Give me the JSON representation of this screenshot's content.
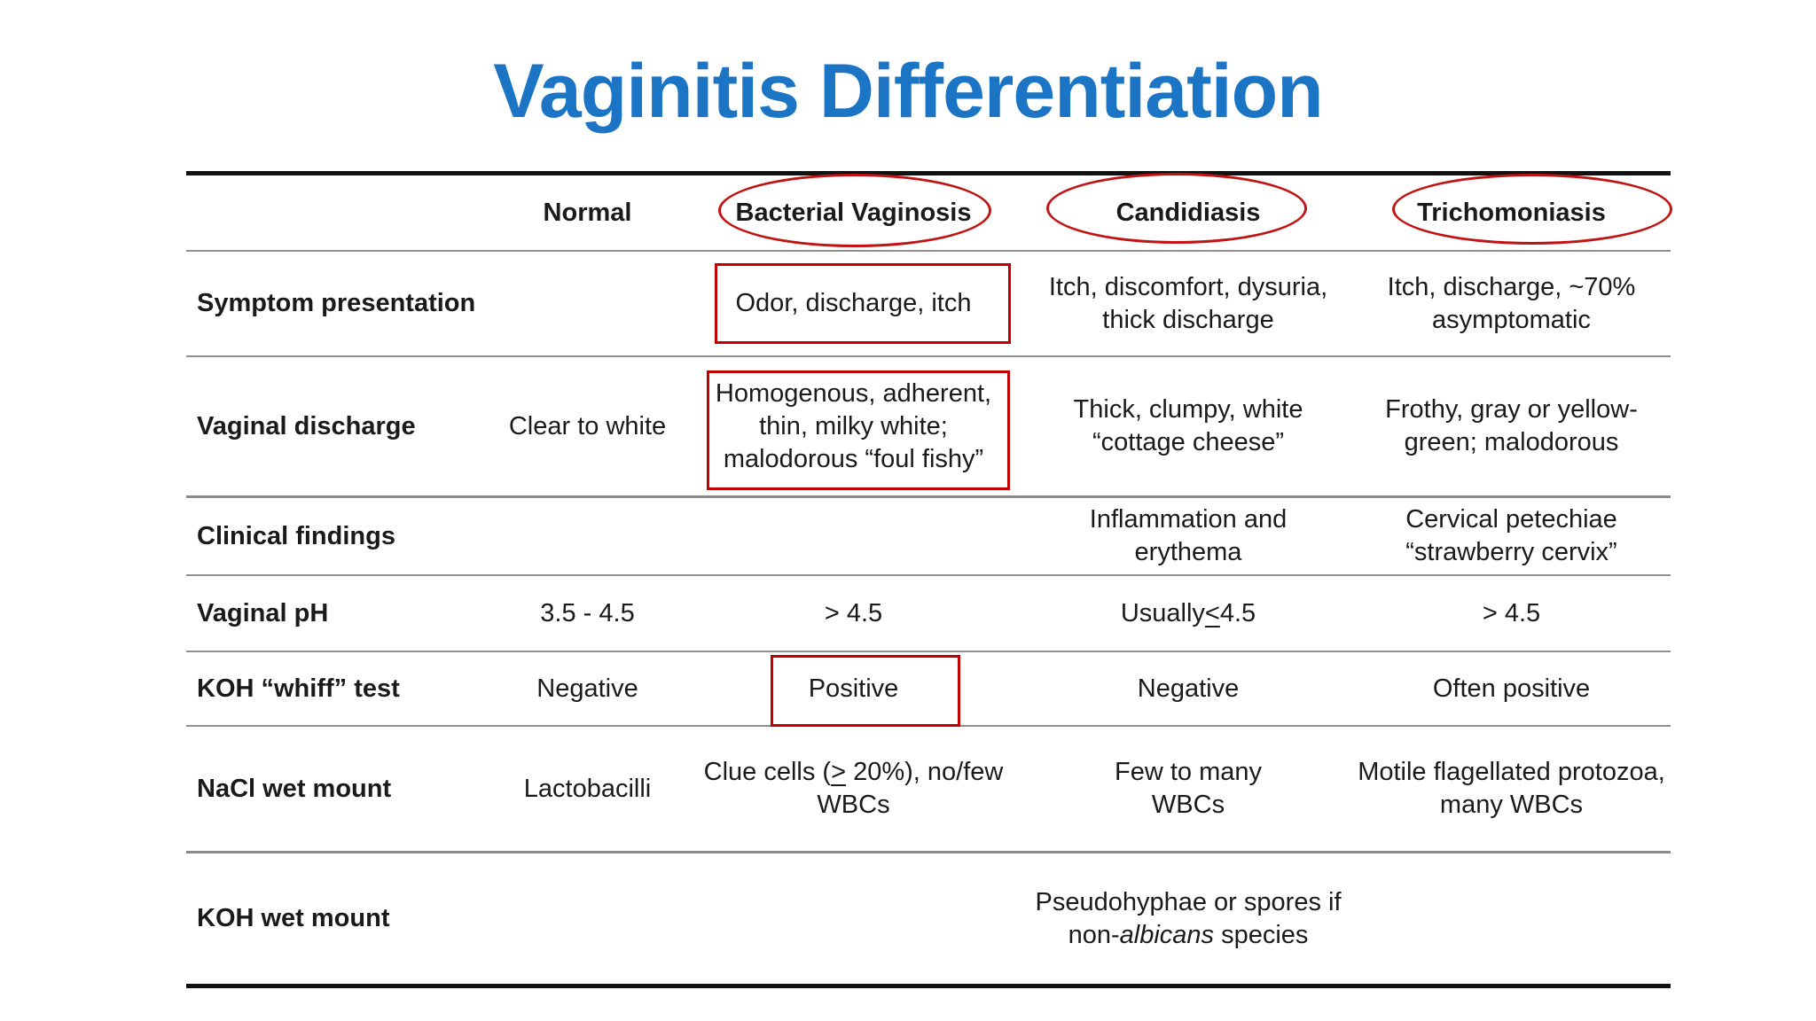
{
  "title": "Vaginitis Differentiation",
  "colors": {
    "title_blue": "#1b74c4",
    "annotation_red": "#c00000",
    "rule_black": "#111111",
    "rule_gray": "#8f8f8f"
  },
  "table": {
    "columns": [
      "",
      "Normal",
      "Bacterial Vaginosis",
      "Candidiasis",
      "Trichomoniasis"
    ],
    "rows": [
      {
        "label": "Symptom presentation",
        "normal": "",
        "bv": "Odor, discharge, itch",
        "candidiasis": "Itch, discomfort, dysuria,\nthick discharge",
        "trichomoniasis": "Itch, discharge, ~70%\nasymptomatic"
      },
      {
        "label": "Vaginal discharge",
        "normal": "Clear to white",
        "bv": "Homogenous, adherent,\nthin, milky white;\nmalodorous “foul fishy”",
        "candidiasis": "Thick, clumpy, white\n“cottage cheese”",
        "trichomoniasis": "Frothy, gray or yellow-\ngreen; malodorous"
      },
      {
        "label": "Clinical findings",
        "normal": "",
        "bv": "",
        "candidiasis": "Inflammation and\nerythema",
        "trichomoniasis": "Cervical petechiae\n“strawberry cervix”"
      },
      {
        "label": "Vaginal pH",
        "normal": "3.5 - 4.5",
        "bv": "> 4.5",
        "candidiasis_parts": {
          "pre": "Usually ",
          "underlined": "<",
          "post": " 4.5"
        },
        "trichomoniasis": "> 4.5"
      },
      {
        "label": "KOH “whiff” test",
        "normal": "Negative",
        "bv": "Positive",
        "candidiasis": "Negative",
        "trichomoniasis": "Often positive"
      },
      {
        "label": "NaCl wet mount",
        "normal": "Lactobacilli",
        "bv_parts": {
          "pre": "Clue cells (",
          "underlined": ">",
          "post": " 20%), no/few\nWBCs"
        },
        "candidiasis": "Few to many\nWBCs",
        "trichomoniasis": "Motile flagellated protozoa,\nmany WBCs"
      },
      {
        "label": "KOH wet mount",
        "normal": "",
        "bv": "",
        "candidiasis_parts": {
          "pre": "Pseudohyphae or spores if\nnon-",
          "italic": "albicans",
          "post": " species"
        },
        "trichomoniasis": ""
      }
    ],
    "annotations": {
      "circled_headers": [
        "Bacterial Vaginosis",
        "Candidiasis",
        "Trichomoniasis"
      ],
      "boxed_cells": [
        "Odor, discharge, itch",
        "Homogenous, adherent, thin, milky white; malodorous “foul fishy”",
        "Positive"
      ]
    }
  }
}
